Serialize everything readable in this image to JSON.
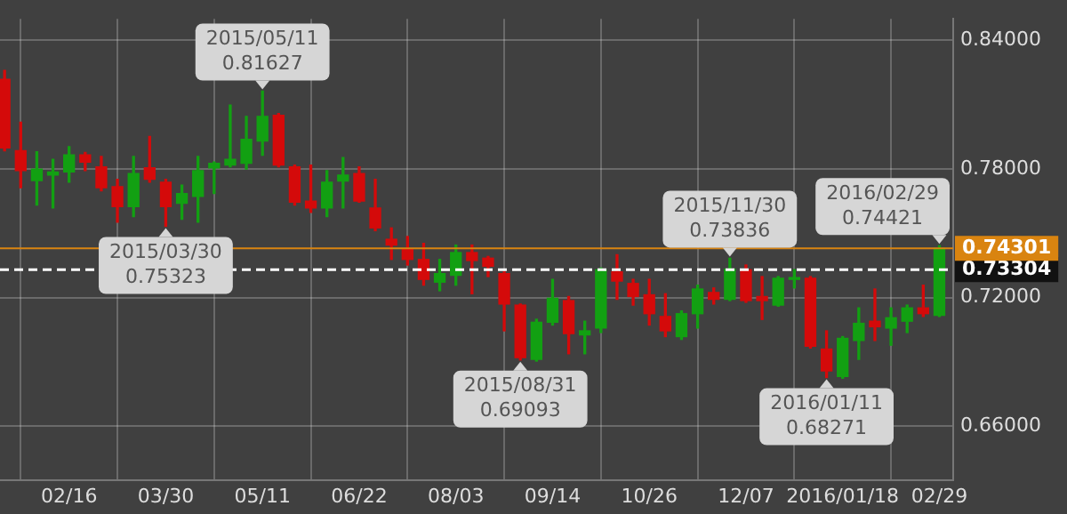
{
  "chart_data": {
    "type": "candlestick",
    "x": [
      "2015-01-19",
      "2015-01-26",
      "2015-02-02",
      "2015-02-09",
      "2015-02-16",
      "2015-02-23",
      "2015-03-02",
      "2015-03-09",
      "2015-03-16",
      "2015-03-23",
      "2015-03-30",
      "2015-04-06",
      "2015-04-13",
      "2015-04-20",
      "2015-04-27",
      "2015-05-04",
      "2015-05-11",
      "2015-05-18",
      "2015-05-25",
      "2015-06-01",
      "2015-06-08",
      "2015-06-15",
      "2015-06-22",
      "2015-06-29",
      "2015-07-06",
      "2015-07-13",
      "2015-07-20",
      "2015-07-27",
      "2015-08-03",
      "2015-08-10",
      "2015-08-17",
      "2015-08-24",
      "2015-08-31",
      "2015-09-07",
      "2015-09-14",
      "2015-09-21",
      "2015-09-28",
      "2015-10-05",
      "2015-10-12",
      "2015-10-19",
      "2015-10-26",
      "2015-11-02",
      "2015-11-09",
      "2015-11-16",
      "2015-11-23",
      "2015-11-30",
      "2015-12-07",
      "2015-12-14",
      "2015-12-21",
      "2015-12-28",
      "2016-01-04",
      "2016-01-11",
      "2016-01-18",
      "2016-01-25",
      "2016-02-01",
      "2016-02-08",
      "2016-02-15",
      "2016-02-22",
      "2016-02-29"
    ],
    "ohlc": [
      [
        0.8218,
        0.826,
        0.7885,
        0.7898
      ],
      [
        0.7885,
        0.8018,
        0.7712,
        0.7792
      ],
      [
        0.7746,
        0.788,
        0.7632,
        0.7799
      ],
      [
        0.7772,
        0.7845,
        0.7618,
        0.7786
      ],
      [
        0.7786,
        0.7904,
        0.7738,
        0.7866
      ],
      [
        0.7866,
        0.7877,
        0.7792,
        0.7832
      ],
      [
        0.781,
        0.7858,
        0.7698,
        0.7712
      ],
      [
        0.7717,
        0.7752,
        0.7552,
        0.7624
      ],
      [
        0.7624,
        0.7858,
        0.7578,
        0.7779
      ],
      [
        0.7805,
        0.7952,
        0.7738,
        0.7752
      ],
      [
        0.7738,
        0.7752,
        0.75323,
        0.7624
      ],
      [
        0.764,
        0.7725,
        0.7565,
        0.7685
      ],
      [
        0.7672,
        0.7858,
        0.7552,
        0.7792
      ],
      [
        0.7805,
        0.7832,
        0.7685,
        0.7826
      ],
      [
        0.7818,
        0.8098,
        0.781,
        0.7845
      ],
      [
        0.7826,
        0.8045,
        0.78,
        0.7938
      ],
      [
        0.793,
        0.81627,
        0.7864,
        0.8045
      ],
      [
        0.805,
        0.8058,
        0.781,
        0.7818
      ],
      [
        0.781,
        0.7818,
        0.7632,
        0.7645
      ],
      [
        0.765,
        0.7818,
        0.7597,
        0.7618
      ],
      [
        0.7618,
        0.7792,
        0.7578,
        0.7738
      ],
      [
        0.7744,
        0.7853,
        0.7618,
        0.7771
      ],
      [
        0.7779,
        0.781,
        0.7645,
        0.765
      ],
      [
        0.7618,
        0.7752,
        0.7512,
        0.7525
      ],
      [
        0.7472,
        0.7525,
        0.7378,
        0.7445
      ],
      [
        0.7426,
        0.7485,
        0.7352,
        0.7378
      ],
      [
        0.7378,
        0.7453,
        0.7258,
        0.7285
      ],
      [
        0.7272,
        0.7378,
        0.7232,
        0.7312
      ],
      [
        0.7304,
        0.7445,
        0.7258,
        0.741
      ],
      [
        0.741,
        0.7445,
        0.7218,
        0.7373
      ],
      [
        0.7384,
        0.7392,
        0.7298,
        0.7346
      ],
      [
        0.7312,
        0.732,
        0.7045,
        0.717
      ],
      [
        0.7165,
        0.717,
        0.69093,
        0.692
      ],
      [
        0.6912,
        0.7099,
        0.6904,
        0.7085
      ],
      [
        0.7085,
        0.7285,
        0.7072,
        0.7197
      ],
      [
        0.7186,
        0.7205,
        0.6938,
        0.7032
      ],
      [
        0.7026,
        0.709,
        0.6938,
        0.7045
      ],
      [
        0.7058,
        0.7338,
        0.7037,
        0.733
      ],
      [
        0.732,
        0.74,
        0.7192,
        0.7277
      ],
      [
        0.7266,
        0.7285,
        0.7165,
        0.7205
      ],
      [
        0.7213,
        0.7285,
        0.7072,
        0.7125
      ],
      [
        0.7112,
        0.7218,
        0.7018,
        0.7045
      ],
      [
        0.7018,
        0.7138,
        0.7005,
        0.7125
      ],
      [
        0.7125,
        0.7258,
        0.7058,
        0.724
      ],
      [
        0.7224,
        0.7245,
        0.717,
        0.7192
      ],
      [
        0.7192,
        0.73836,
        0.7186,
        0.7333
      ],
      [
        0.733,
        0.7352,
        0.7178,
        0.7186
      ],
      [
        0.7205,
        0.7298,
        0.7098,
        0.7186
      ],
      [
        0.7165,
        0.7298,
        0.716,
        0.729
      ],
      [
        0.7285,
        0.733,
        0.7245,
        0.729
      ],
      [
        0.729,
        0.7298,
        0.6965,
        0.6973
      ],
      [
        0.696,
        0.7045,
        0.68271,
        0.6858
      ],
      [
        0.6832,
        0.7018,
        0.6824,
        0.701
      ],
      [
        0.7,
        0.7152,
        0.6912,
        0.708
      ],
      [
        0.709,
        0.724,
        0.7,
        0.7064
      ],
      [
        0.7058,
        0.7152,
        0.6978,
        0.7106
      ],
      [
        0.709,
        0.7165,
        0.7037,
        0.7152
      ],
      [
        0.7152,
        0.7258,
        0.7112,
        0.7125
      ],
      [
        0.7117,
        0.74421,
        0.7112,
        0.74301
      ]
    ],
    "xlim": [
      "2015-01-17",
      "2016-03-06"
    ],
    "xticks": [
      {
        "value": "2015-02-16",
        "label": "02/16"
      },
      {
        "value": "2015-03-30",
        "label": "03/30"
      },
      {
        "value": "2015-05-11",
        "label": "05/11"
      },
      {
        "value": "2015-06-22",
        "label": "06/22"
      },
      {
        "value": "2015-08-03",
        "label": "08/03"
      },
      {
        "value": "2015-09-14",
        "label": "09/14"
      },
      {
        "value": "2015-10-26",
        "label": "10/26"
      },
      {
        "value": "2015-12-07",
        "label": "12/07"
      },
      {
        "value": "2016-01-18",
        "label": "2016/01/18"
      },
      {
        "value": "2016-02-29",
        "label": "02/29"
      }
    ],
    "ylim": [
      0.635,
      0.85
    ],
    "yticks": [
      {
        "value": 0.66,
        "label": "0.66000"
      },
      {
        "value": 0.72,
        "label": "0.72000"
      },
      {
        "value": 0.78,
        "label": "0.78000"
      },
      {
        "value": 0.84,
        "label": "0.84000"
      }
    ],
    "grid": true,
    "ref_lines": [
      {
        "axis": "y",
        "value": 0.73304,
        "label": "0.73304",
        "color": "#ffffff",
        "line_style": "dashed"
      },
      {
        "axis": "y",
        "value": 0.74301,
        "label": "0.74301",
        "color": "#d98410",
        "line_style": "solid"
      }
    ],
    "annotations": [
      {
        "text": "2015/05/11\n0.81627",
        "x": "2015-05-11",
        "y": 0.81627
      },
      {
        "text": "2015/03/30\n0.75323",
        "x": "2015-03-30",
        "y": 0.75323
      },
      {
        "text": "2015/08/31\n0.69093",
        "x": "2015-08-31",
        "y": 0.69093
      },
      {
        "text": "2015/11/30\n0.73836",
        "x": "2015-11-30",
        "y": 0.73836
      },
      {
        "text": "2016/01/11\n0.68271",
        "x": "2016-01-11",
        "y": 0.68271
      },
      {
        "text": "2016/02/29\n0.74421",
        "x": "2016-02-29",
        "y": 0.74421
      }
    ]
  }
}
